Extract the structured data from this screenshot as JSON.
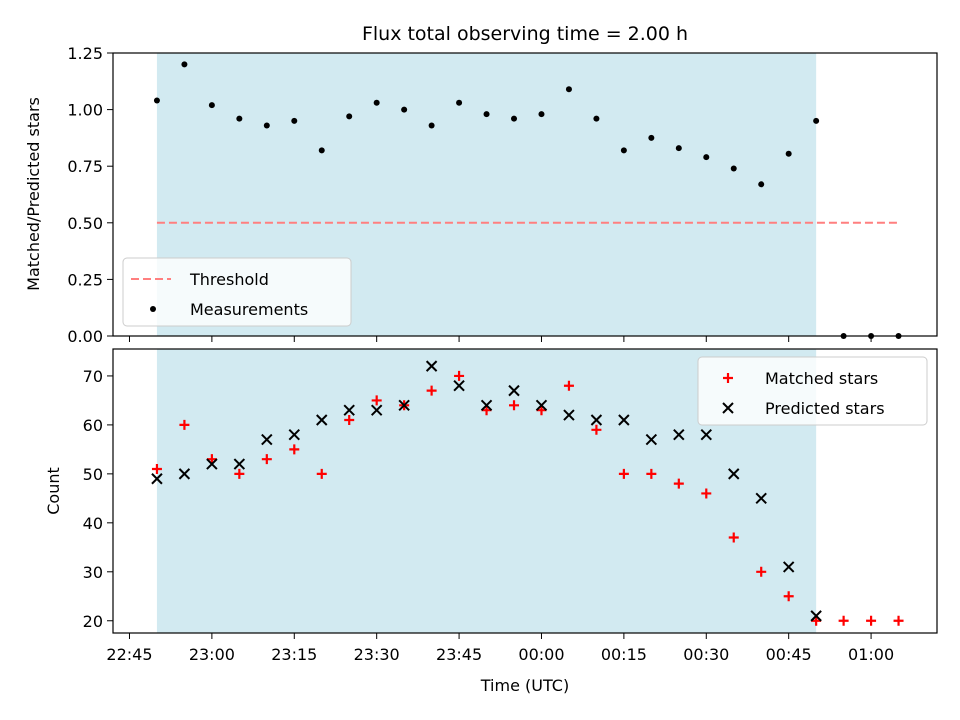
{
  "chart_data": {
    "type": "scatter",
    "title": "Flux total observing time = 2.00 h",
    "xlabel": "Time (UTC)",
    "x_tick_labels": [
      "22:45",
      "23:00",
      "23:15",
      "23:30",
      "23:45",
      "00:00",
      "00:15",
      "00:30",
      "00:45",
      "01:00"
    ],
    "x_tick_minutes": [
      -75,
      -60,
      -45,
      -30,
      -15,
      0,
      15,
      30,
      45,
      60
    ],
    "xlim_minutes": [
      -78,
      72
    ],
    "times": [
      "22:50",
      "22:55",
      "23:00",
      "23:05",
      "23:10",
      "23:15",
      "23:20",
      "23:25",
      "23:30",
      "23:35",
      "23:40",
      "23:45",
      "23:50",
      "23:55",
      "00:00",
      "00:05",
      "00:10",
      "00:15",
      "00:20",
      "00:25",
      "00:30",
      "00:35",
      "00:40",
      "00:45",
      "00:50",
      "00:55",
      "01:00",
      "01:05"
    ],
    "observing_window": {
      "start": "22:50",
      "end": "00:50",
      "color": "#add8e6"
    },
    "panels": [
      {
        "ylabel": "Matched/Predicted stars",
        "ylim": [
          0,
          1.25
        ],
        "y_ticks": [
          "0.00",
          "0.25",
          "0.50",
          "0.75",
          "1.00",
          "1.25"
        ],
        "y_tick_values": [
          0,
          0.25,
          0.5,
          0.75,
          1.0,
          1.25
        ],
        "legend_position": "lower-left",
        "threshold": {
          "name": "Threshold",
          "value": 0.5,
          "from": "22:50",
          "to": "01:05",
          "color": "#ff7f7f"
        },
        "series": [
          {
            "name": "Measurements",
            "marker": "dot",
            "color": "#000000",
            "values": [
              1.04,
              1.2,
              1.02,
              0.96,
              0.93,
              0.95,
              0.82,
              0.97,
              1.03,
              1.0,
              0.93,
              1.03,
              0.98,
              0.96,
              0.98,
              1.09,
              0.96,
              0.82,
              0.875,
              0.83,
              0.79,
              0.74,
              0.67,
              0.805,
              0.95,
              0.0,
              0.0,
              0.0
            ]
          }
        ]
      },
      {
        "ylabel": "Count",
        "ylim": [
          17.5,
          75.5
        ],
        "y_ticks": [
          "20",
          "30",
          "40",
          "50",
          "60",
          "70"
        ],
        "y_tick_values": [
          20,
          30,
          40,
          50,
          60,
          70
        ],
        "legend_position": "upper-right",
        "series": [
          {
            "name": "Matched stars",
            "marker": "plus",
            "color": "#ff0000",
            "values": [
              51,
              60,
              53,
              50,
              53,
              55,
              50,
              61,
              65,
              64,
              67,
              70,
              63,
              64,
              63,
              68,
              59,
              50,
              50,
              48,
              46,
              37,
              30,
              25,
              20,
              20,
              20,
              20
            ]
          },
          {
            "name": "Predicted stars",
            "marker": "x",
            "color": "#000000",
            "values": [
              49,
              50,
              52,
              52,
              57,
              58,
              61,
              63,
              63,
              64,
              72,
              68,
              64,
              67,
              64,
              62,
              61,
              61,
              57,
              58,
              58,
              50,
              45,
              31,
              21,
              null,
              null,
              null
            ]
          }
        ]
      }
    ]
  }
}
